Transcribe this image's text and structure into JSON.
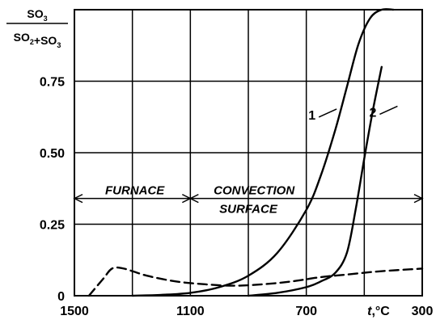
{
  "chart_data": {
    "type": "line",
    "xlabel_var": "t",
    "xlabel_unit": ",°C",
    "ylabel": {
      "numerator": "SO3",
      "denominator": "SO2+SO3"
    },
    "x_ticks": [
      "1500",
      "1100",
      "700",
      "300"
    ],
    "y_ticks": [
      "0",
      "0.25",
      "0.50",
      "0.75"
    ],
    "xlim": [
      1500,
      300
    ],
    "ylim": [
      0,
      1.0
    ],
    "grid": true,
    "regions": [
      {
        "label": "FURNACE",
        "x_from": 1500,
        "x_to": 1100
      },
      {
        "label": "CONVECTION",
        "label2": "SURFACE",
        "x_from": 1100,
        "x_to": 300
      }
    ],
    "series": [
      {
        "name": "1",
        "style": "solid",
        "x": [
          1300,
          1200,
          1100,
          1000,
          900,
          800,
          700,
          650,
          600,
          560,
          520,
          480,
          440,
          400
        ],
        "y": [
          0,
          0.003,
          0.01,
          0.03,
          0.07,
          0.15,
          0.3,
          0.42,
          0.58,
          0.73,
          0.88,
          0.97,
          1.0,
          1.0
        ]
      },
      {
        "name": "2",
        "style": "solid",
        "x": [
          900,
          800,
          700,
          650,
          600,
          560,
          530,
          500,
          470,
          440
        ],
        "y": [
          0,
          0.01,
          0.03,
          0.05,
          0.08,
          0.15,
          0.3,
          0.48,
          0.65,
          0.8
        ]
      },
      {
        "name": "",
        "style": "dashed",
        "x": [
          1450,
          1400,
          1370,
          1330,
          1250,
          1150,
          1050,
          950,
          850,
          750,
          650,
          550,
          450,
          300
        ],
        "y": [
          0,
          0.06,
          0.095,
          0.095,
          0.07,
          0.05,
          0.04,
          0.035,
          0.04,
          0.05,
          0.065,
          0.075,
          0.085,
          0.095
        ]
      }
    ],
    "curve_labels": [
      {
        "text": "1",
        "x": 640,
        "y": 0.63
      },
      {
        "text": "2",
        "x": 430,
        "y": 0.64
      }
    ]
  }
}
